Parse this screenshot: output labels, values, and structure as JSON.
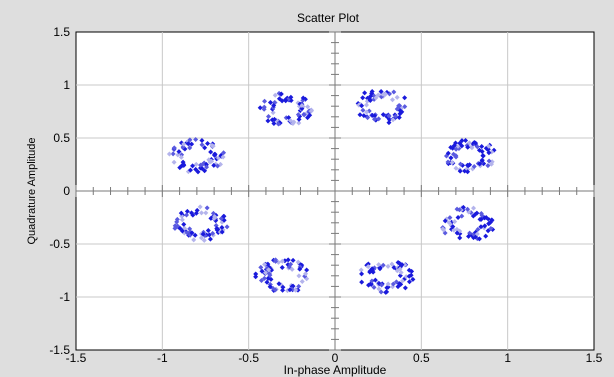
{
  "chart_data": {
    "type": "scatter",
    "title": "Scatter Plot",
    "xlabel": "In-phase Amplitude",
    "ylabel": "Quadrature Amplitude",
    "xlim": [
      -1.5,
      1.5
    ],
    "ylim": [
      -1.5,
      1.5
    ],
    "xticks": [
      "-1.5",
      "-1",
      "-0.5",
      "0",
      "0.5",
      "1",
      "1.5"
    ],
    "yticks": [
      "1.5",
      "1",
      "0.5",
      "0",
      "-0.5",
      "-1",
      "-1.5"
    ],
    "grid": true,
    "clusters": [
      {
        "cx": 0.27,
        "cy": 0.8,
        "r": 0.14
      },
      {
        "cx": -0.28,
        "cy": 0.77,
        "r": 0.14
      },
      {
        "cx": -0.8,
        "cy": 0.33,
        "r": 0.14
      },
      {
        "cx": 0.78,
        "cy": 0.33,
        "r": 0.14
      },
      {
        "cx": -0.78,
        "cy": -0.31,
        "r": 0.14
      },
      {
        "cx": 0.77,
        "cy": -0.31,
        "r": 0.14
      },
      {
        "cx": -0.3,
        "cy": -0.8,
        "r": 0.14
      },
      {
        "cx": 0.3,
        "cy": -0.8,
        "r": 0.14
      }
    ],
    "points_per_cluster": 70,
    "colors": {
      "strong": "#1a1adc",
      "medium": "#5a5ae0",
      "faint": "#b4b4ec"
    }
  }
}
